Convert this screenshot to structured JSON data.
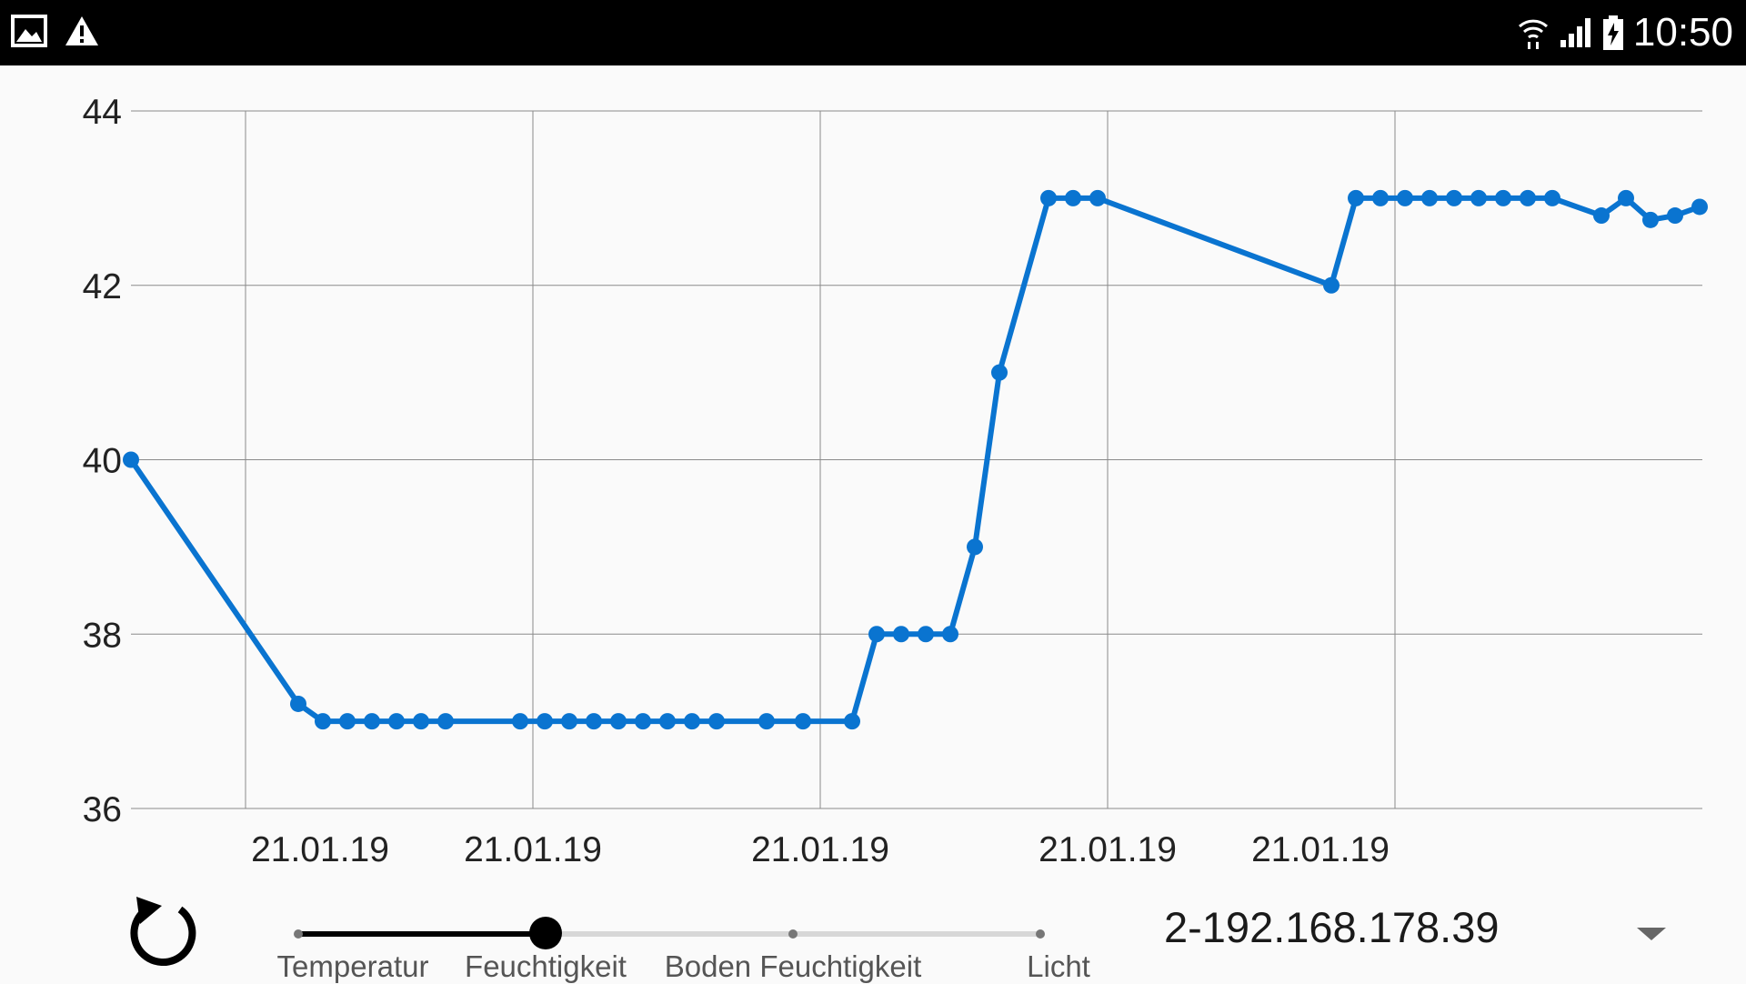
{
  "status_bar": {
    "time": "10:50",
    "icons": [
      "image-notification-icon",
      "warning-icon",
      "wifi-icon",
      "cell-signal-icon",
      "battery-charging-icon"
    ]
  },
  "chart_data": {
    "type": "line",
    "title": "",
    "xlabel": "",
    "ylabel": "",
    "ylim": [
      36,
      44
    ],
    "y_ticks": [
      36,
      38,
      40,
      42,
      44
    ],
    "x_tick_labels": [
      "21.01.19",
      "21.01.19",
      "21.01.19",
      "21.01.19",
      "21.01.19"
    ],
    "grid": true,
    "series": [
      {
        "color": "#0a74d0",
        "values": [
          40,
          37.2,
          37,
          37,
          37,
          37,
          37,
          37,
          37,
          37,
          37,
          37,
          37,
          37,
          37,
          37,
          37,
          37,
          37,
          37,
          38,
          38,
          38,
          38,
          39,
          41,
          43,
          43,
          43,
          42,
          43,
          43,
          43,
          43,
          43,
          43,
          43,
          43,
          43,
          42.8,
          43,
          42.75,
          42.8,
          42.9
        ]
      }
    ]
  },
  "controls": {
    "refresh_icon": "refresh-icon",
    "slider": {
      "selected_index": 1,
      "options": [
        "Temperatur",
        "Feuchtigkeit",
        "Boden Feuchtigkeit",
        "Licht"
      ]
    },
    "device_select": {
      "value": "2-192.168.178.39"
    }
  }
}
